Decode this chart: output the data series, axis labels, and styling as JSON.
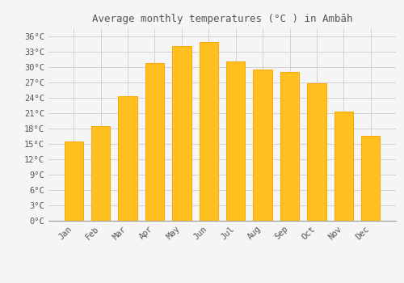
{
  "title": "Average monthly temperatures (°C ) in Ambāh",
  "months": [
    "Jan",
    "Feb",
    "Mar",
    "Apr",
    "May",
    "Jun",
    "Jul",
    "Aug",
    "Sep",
    "Oct",
    "Nov",
    "Dec"
  ],
  "values": [
    15.5,
    18.5,
    24.3,
    30.8,
    34.0,
    34.8,
    31.0,
    29.5,
    29.0,
    26.8,
    21.3,
    16.5
  ],
  "bar_color": "#FFC020",
  "bar_edge_color": "#FFA500",
  "background_color": "#F5F5F5",
  "grid_color": "#CCCCCC",
  "text_color": "#555555",
  "yticks": [
    0,
    3,
    6,
    9,
    12,
    15,
    18,
    21,
    24,
    27,
    30,
    33,
    36
  ],
  "ylim": [
    0,
    37.5
  ],
  "title_fontsize": 9,
  "tick_fontsize": 7.5,
  "font_family": "monospace"
}
